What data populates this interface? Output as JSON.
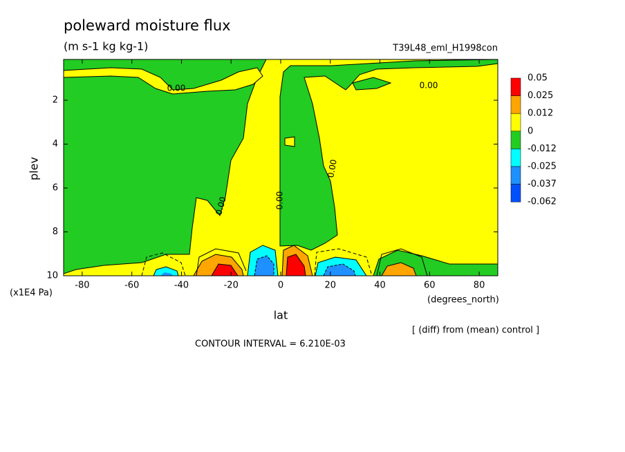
{
  "chart_data": {
    "type": "contour",
    "title": "poleward moisture flux",
    "subtitle": "(m s-1 kg kg-1)",
    "dataset": "T39L48_eml_H1998con",
    "x_label": "lat",
    "x_units": "(degrees_north)",
    "y_label": "plev",
    "y_units": "(x1E4 Pa)",
    "note": "[ (diff) from (mean) control ]",
    "contour_interval": "CONTOUR INTERVAL = 6.210E-03",
    "xlim": [
      -87.5,
      87.5
    ],
    "xticks": [
      -80,
      -60,
      -40,
      -20,
      0,
      20,
      40,
      60,
      80
    ],
    "ylim": [
      10,
      0.14
    ],
    "yticks": [
      2,
      4,
      6,
      8,
      10
    ],
    "levels": [
      0.05,
      0.025,
      0.012,
      0,
      -0.012,
      -0.025,
      -0.037,
      -0.062
    ],
    "level_colors": [
      "#ff0000",
      "#ffa500",
      "#ffff00",
      "#22cc22",
      "#00ffff",
      "#1e90ff",
      "#0050ff"
    ],
    "contour_labels": [
      {
        "value": 0,
        "label": "0.00"
      },
      {
        "value": 0,
        "label": "0.00"
      },
      {
        "value": 0,
        "label": "0.00"
      },
      {
        "value": 0,
        "label": "0.00"
      },
      {
        "value": 0,
        "label": "0.00"
      }
    ]
  }
}
